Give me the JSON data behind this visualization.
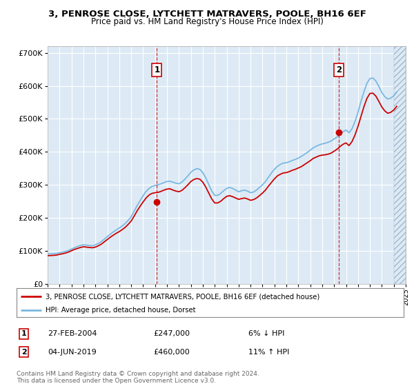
{
  "title": "3, PENROSE CLOSE, LYTCHETT MATRAVERS, POOLE, BH16 6EF",
  "subtitle": "Price paid vs. HM Land Registry's House Price Index (HPI)",
  "bg_color": "#ddeaf5",
  "x_start_year": 1995,
  "x_end_year": 2025,
  "ylim": [
    0,
    720000
  ],
  "yticks": [
    0,
    100000,
    200000,
    300000,
    400000,
    500000,
    600000,
    700000
  ],
  "ytick_labels": [
    "£0",
    "£100K",
    "£200K",
    "£300K",
    "£400K",
    "£500K",
    "£600K",
    "£700K"
  ],
  "sale1_year": 2004.15,
  "sale1_price": 247000,
  "sale2_year": 2019.42,
  "sale2_price": 460000,
  "sale1_date": "27-FEB-2004",
  "sale1_amount": "£247,000",
  "sale1_hpi_diff": "6% ↓ HPI",
  "sale2_date": "04-JUN-2019",
  "sale2_amount": "£460,000",
  "sale2_hpi_diff": "11% ↑ HPI",
  "legend_line1": "3, PENROSE CLOSE, LYTCHETT MATRAVERS, POOLE, BH16 6EF (detached house)",
  "legend_line2": "HPI: Average price, detached house, Dorset",
  "footer": "Contains HM Land Registry data © Crown copyright and database right 2024.\nThis data is licensed under the Open Government Licence v3.0.",
  "hpi_years": [
    1995.0,
    1995.25,
    1995.5,
    1995.75,
    1996.0,
    1996.25,
    1996.5,
    1996.75,
    1997.0,
    1997.25,
    1997.5,
    1997.75,
    1998.0,
    1998.25,
    1998.5,
    1998.75,
    1999.0,
    1999.25,
    1999.5,
    1999.75,
    2000.0,
    2000.25,
    2000.5,
    2000.75,
    2001.0,
    2001.25,
    2001.5,
    2001.75,
    2002.0,
    2002.25,
    2002.5,
    2002.75,
    2003.0,
    2003.25,
    2003.5,
    2003.75,
    2004.0,
    2004.25,
    2004.5,
    2004.75,
    2005.0,
    2005.25,
    2005.5,
    2005.75,
    2006.0,
    2006.25,
    2006.5,
    2006.75,
    2007.0,
    2007.25,
    2007.5,
    2007.75,
    2008.0,
    2008.25,
    2008.5,
    2008.75,
    2009.0,
    2009.25,
    2009.5,
    2009.75,
    2010.0,
    2010.25,
    2010.5,
    2010.75,
    2011.0,
    2011.25,
    2011.5,
    2011.75,
    2012.0,
    2012.25,
    2012.5,
    2012.75,
    2013.0,
    2013.25,
    2013.5,
    2013.75,
    2014.0,
    2014.25,
    2014.5,
    2014.75,
    2015.0,
    2015.25,
    2015.5,
    2015.75,
    2016.0,
    2016.25,
    2016.5,
    2016.75,
    2017.0,
    2017.25,
    2017.5,
    2017.75,
    2018.0,
    2018.25,
    2018.5,
    2018.75,
    2019.0,
    2019.25,
    2019.5,
    2019.75,
    2020.0,
    2020.25,
    2020.5,
    2020.75,
    2021.0,
    2021.25,
    2021.5,
    2021.75,
    2022.0,
    2022.25,
    2022.5,
    2022.75,
    2023.0,
    2023.25,
    2023.5,
    2023.75,
    2024.0,
    2024.25
  ],
  "hpi_values": [
    90000,
    90500,
    91000,
    92000,
    94000,
    96000,
    98000,
    101000,
    105000,
    109000,
    113000,
    116000,
    118000,
    117000,
    116000,
    115000,
    118000,
    122000,
    128000,
    135000,
    143000,
    150000,
    157000,
    163000,
    169000,
    175000,
    183000,
    192000,
    203000,
    220000,
    237000,
    252000,
    267000,
    280000,
    289000,
    295000,
    298000,
    300000,
    303000,
    307000,
    310000,
    311000,
    308000,
    305000,
    303000,
    308000,
    317000,
    327000,
    338000,
    345000,
    349000,
    347000,
    337000,
    321000,
    301000,
    281000,
    268000,
    268000,
    274000,
    282000,
    289000,
    292000,
    289000,
    284000,
    279000,
    282000,
    284000,
    281000,
    276000,
    278000,
    284000,
    292000,
    300000,
    310000,
    323000,
    336000,
    347000,
    356000,
    362000,
    366000,
    367000,
    370000,
    374000,
    377000,
    381000,
    386000,
    392000,
    398000,
    405000,
    412000,
    417000,
    421000,
    424000,
    426000,
    429000,
    433000,
    439000,
    445000,
    453000,
    461000,
    466000,
    458000,
    470000,
    492000,
    520000,
    553000,
    582000,
    608000,
    622000,
    624000,
    615000,
    598000,
    580000,
    567000,
    560000,
    563000,
    570000,
    581000
  ],
  "price_years": [
    1995.0,
    1995.25,
    1995.5,
    1995.75,
    1996.0,
    1996.25,
    1996.5,
    1996.75,
    1997.0,
    1997.25,
    1997.5,
    1997.75,
    1998.0,
    1998.25,
    1998.5,
    1998.75,
    1999.0,
    1999.25,
    1999.5,
    1999.75,
    2000.0,
    2000.25,
    2000.5,
    2000.75,
    2001.0,
    2001.25,
    2001.5,
    2001.75,
    2002.0,
    2002.25,
    2002.5,
    2002.75,
    2003.0,
    2003.25,
    2003.5,
    2003.75,
    2004.0,
    2004.25,
    2004.5,
    2004.75,
    2005.0,
    2005.25,
    2005.5,
    2005.75,
    2006.0,
    2006.25,
    2006.5,
    2006.75,
    2007.0,
    2007.25,
    2007.5,
    2007.75,
    2008.0,
    2008.25,
    2008.5,
    2008.75,
    2009.0,
    2009.25,
    2009.5,
    2009.75,
    2010.0,
    2010.25,
    2010.5,
    2010.75,
    2011.0,
    2011.25,
    2011.5,
    2011.75,
    2012.0,
    2012.25,
    2012.5,
    2012.75,
    2013.0,
    2013.25,
    2013.5,
    2013.75,
    2014.0,
    2014.25,
    2014.5,
    2014.75,
    2015.0,
    2015.25,
    2015.5,
    2015.75,
    2016.0,
    2016.25,
    2016.5,
    2016.75,
    2017.0,
    2017.25,
    2017.5,
    2017.75,
    2018.0,
    2018.25,
    2018.5,
    2018.75,
    2019.0,
    2019.25,
    2019.5,
    2019.75,
    2020.0,
    2020.25,
    2020.5,
    2020.75,
    2021.0,
    2021.25,
    2021.5,
    2021.75,
    2022.0,
    2022.25,
    2022.5,
    2022.75,
    2023.0,
    2023.25,
    2023.5,
    2023.75,
    2024.0,
    2024.25
  ],
  "price_values": [
    85000,
    85500,
    86000,
    87000,
    89000,
    91000,
    93000,
    96000,
    100000,
    104000,
    107000,
    110000,
    112000,
    111000,
    110000,
    109000,
    111000,
    115000,
    120000,
    127000,
    134000,
    141000,
    147000,
    153000,
    158000,
    164000,
    171000,
    180000,
    190000,
    205000,
    221000,
    235000,
    248000,
    260000,
    269000,
    274000,
    276000,
    277000,
    280000,
    284000,
    287000,
    288000,
    284000,
    281000,
    279000,
    283000,
    291000,
    300000,
    310000,
    316000,
    319000,
    317000,
    308000,
    293000,
    275000,
    257000,
    245000,
    245000,
    250000,
    258000,
    265000,
    267000,
    264000,
    260000,
    256000,
    258000,
    260000,
    257000,
    253000,
    255000,
    260000,
    267000,
    275000,
    284000,
    296000,
    307000,
    318000,
    327000,
    332000,
    336000,
    337000,
    340000,
    344000,
    347000,
    351000,
    355000,
    361000,
    367000,
    373000,
    380000,
    384000,
    388000,
    390000,
    391000,
    393000,
    396000,
    402000,
    408000,
    416000,
    423000,
    427000,
    419000,
    431000,
    451000,
    477000,
    507000,
    537000,
    562000,
    577000,
    578000,
    569000,
    553000,
    536000,
    524000,
    517000,
    520000,
    527000,
    538000
  ]
}
